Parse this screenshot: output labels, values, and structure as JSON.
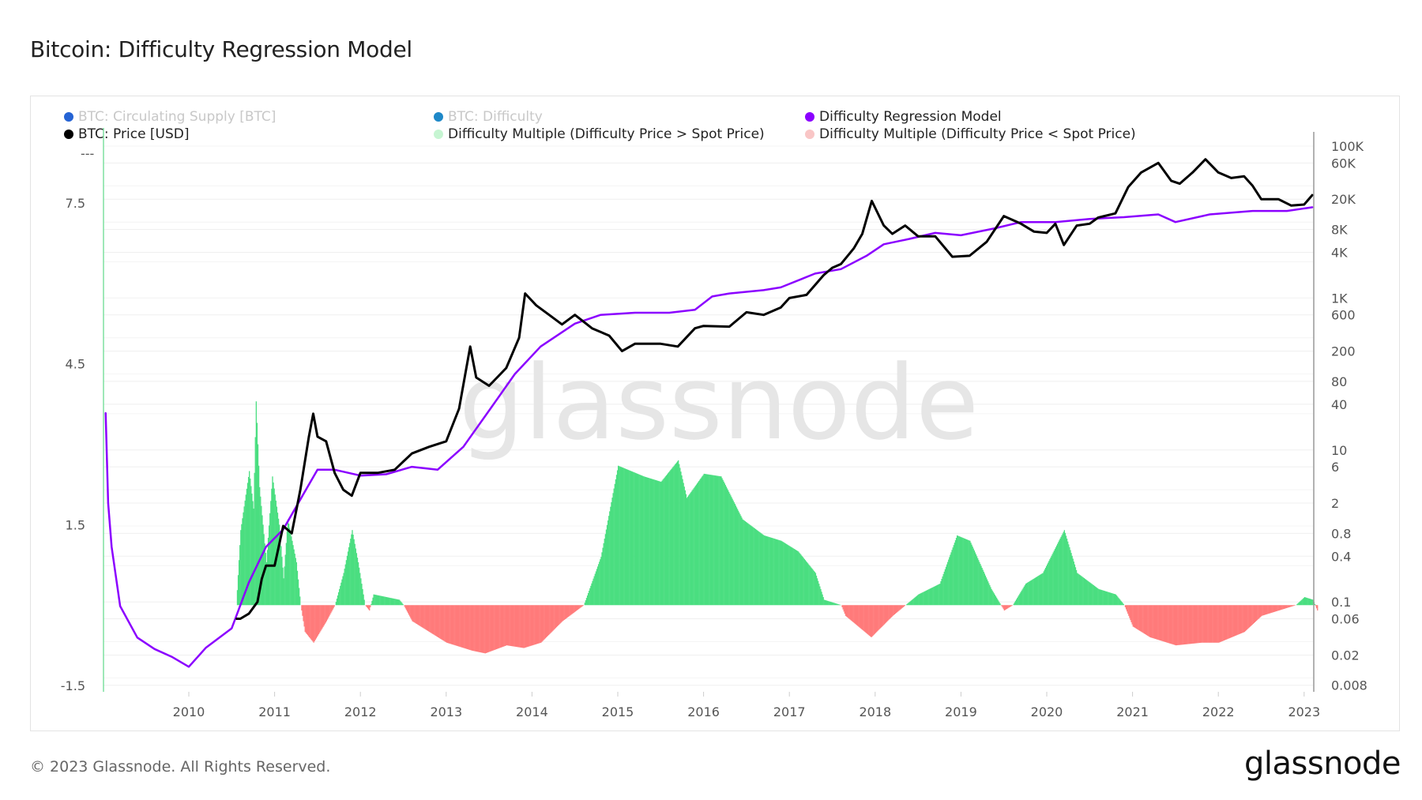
{
  "title": "Bitcoin: Difficulty Regression Model",
  "footer": "© 2023 Glassnode. All Rights Reserved.",
  "logo": "glassnode",
  "watermark": "glassnode",
  "legend": [
    {
      "label": "BTC: Circulating Supply [BTC]",
      "color": "#2563d4",
      "enabled": false
    },
    {
      "label": "BTC: Difficulty",
      "color": "#1e88c8",
      "enabled": false
    },
    {
      "label": "Difficulty Regression Model",
      "color": "#8b00ff",
      "enabled": true
    },
    {
      "label": "BTC: Price [USD]",
      "color": "#000000",
      "enabled": true
    },
    {
      "label": "Difficulty Multiple (Difficulty Price > Spot Price)",
      "color": "#c6f5d2",
      "enabled": true
    },
    {
      "label": "Difficulty Multiple (Difficulty Price < Spot Price)",
      "color": "#f9c6c6",
      "enabled": true
    }
  ],
  "chart_data": {
    "type": "line",
    "title": "Bitcoin: Difficulty Regression Model",
    "x_ticks": [
      "2010",
      "2011",
      "2012",
      "2013",
      "2014",
      "2015",
      "2016",
      "2017",
      "2018",
      "2019",
      "2020",
      "2021",
      "2022",
      "2023"
    ],
    "left_axis": {
      "ticks": [
        "7.5",
        "4.5",
        "1.5",
        "-1.5"
      ],
      "tick_values": [
        7.5,
        4.5,
        1.5,
        -1.5
      ],
      "top_label": "---",
      "range": [
        -1.5,
        7.5
      ]
    },
    "right_axis": {
      "scale": "log",
      "ticks": [
        "100K",
        "60K",
        "20K",
        "8K",
        "4K",
        "1K",
        "600",
        "200",
        "80",
        "40",
        "10",
        "6",
        "2",
        "0.8",
        "0.4",
        "0.1",
        "0.06",
        "0.02",
        "0.008"
      ],
      "tick_values": [
        100000,
        60000,
        20000,
        8000,
        4000,
        1000,
        600,
        200,
        80,
        40,
        10,
        6,
        2,
        0.8,
        0.4,
        0.1,
        0.06,
        0.02,
        0.008
      ],
      "range": [
        0.008,
        100000
      ]
    },
    "x_range": [
      2009.0,
      2023.11
    ],
    "grid": true,
    "legend_placement": "top",
    "series": [
      {
        "name": "BTC: Price [USD]",
        "axis": "right",
        "color": "#000000",
        "points": [
          [
            2010.55,
            0.06
          ],
          [
            2010.6,
            0.06
          ],
          [
            2010.7,
            0.07
          ],
          [
            2010.8,
            0.1
          ],
          [
            2010.85,
            0.2
          ],
          [
            2010.9,
            0.3
          ],
          [
            2011.0,
            0.3
          ],
          [
            2011.1,
            1.0
          ],
          [
            2011.2,
            0.8
          ],
          [
            2011.3,
            3
          ],
          [
            2011.4,
            15
          ],
          [
            2011.45,
            30
          ],
          [
            2011.5,
            15
          ],
          [
            2011.6,
            13
          ],
          [
            2011.7,
            5
          ],
          [
            2011.8,
            3
          ],
          [
            2011.9,
            2.5
          ],
          [
            2012.0,
            5
          ],
          [
            2012.2,
            5
          ],
          [
            2012.4,
            5.5
          ],
          [
            2012.6,
            9
          ],
          [
            2012.8,
            11
          ],
          [
            2013.0,
            13
          ],
          [
            2013.15,
            35
          ],
          [
            2013.28,
            230
          ],
          [
            2013.35,
            90
          ],
          [
            2013.5,
            70
          ],
          [
            2013.7,
            120
          ],
          [
            2013.85,
            300
          ],
          [
            2013.92,
            1150
          ],
          [
            2014.05,
            800
          ],
          [
            2014.2,
            600
          ],
          [
            2014.35,
            450
          ],
          [
            2014.5,
            600
          ],
          [
            2014.7,
            400
          ],
          [
            2014.9,
            320
          ],
          [
            2015.05,
            200
          ],
          [
            2015.2,
            250
          ],
          [
            2015.5,
            250
          ],
          [
            2015.7,
            230
          ],
          [
            2015.9,
            400
          ],
          [
            2016.0,
            430
          ],
          [
            2016.3,
            420
          ],
          [
            2016.5,
            650
          ],
          [
            2016.7,
            600
          ],
          [
            2016.9,
            750
          ],
          [
            2017.0,
            1000
          ],
          [
            2017.2,
            1100
          ],
          [
            2017.4,
            2000
          ],
          [
            2017.5,
            2500
          ],
          [
            2017.6,
            2800
          ],
          [
            2017.75,
            4500
          ],
          [
            2017.85,
            7000
          ],
          [
            2017.96,
            19000
          ],
          [
            2018.1,
            9000
          ],
          [
            2018.2,
            7000
          ],
          [
            2018.35,
            9000
          ],
          [
            2018.5,
            6500
          ],
          [
            2018.7,
            6500
          ],
          [
            2018.9,
            3500
          ],
          [
            2019.1,
            3600
          ],
          [
            2019.3,
            5500
          ],
          [
            2019.5,
            12000
          ],
          [
            2019.7,
            9500
          ],
          [
            2019.85,
            7500
          ],
          [
            2020.0,
            7200
          ],
          [
            2020.1,
            9500
          ],
          [
            2020.2,
            5000
          ],
          [
            2020.35,
            9000
          ],
          [
            2020.5,
            9500
          ],
          [
            2020.6,
            11500
          ],
          [
            2020.8,
            13000
          ],
          [
            2020.95,
            29000
          ],
          [
            2021.1,
            45000
          ],
          [
            2021.3,
            60000
          ],
          [
            2021.45,
            35000
          ],
          [
            2021.55,
            32000
          ],
          [
            2021.7,
            45000
          ],
          [
            2021.85,
            67000
          ],
          [
            2022.0,
            45000
          ],
          [
            2022.15,
            38000
          ],
          [
            2022.3,
            40000
          ],
          [
            2022.4,
            30000
          ],
          [
            2022.5,
            20000
          ],
          [
            2022.7,
            20000
          ],
          [
            2022.85,
            16500
          ],
          [
            2023.0,
            17000
          ],
          [
            2023.1,
            23000
          ]
        ]
      },
      {
        "name": "Difficulty Regression Model",
        "axis": "right",
        "color": "#8b00ff",
        "points": [
          [
            2009.03,
            31
          ],
          [
            2009.06,
            2
          ],
          [
            2009.1,
            0.53
          ],
          [
            2009.2,
            0.088
          ],
          [
            2009.4,
            0.034
          ],
          [
            2009.6,
            0.024
          ],
          [
            2009.8,
            0.019
          ],
          [
            2010.0,
            0.014
          ],
          [
            2010.2,
            0.025
          ],
          [
            2010.5,
            0.045
          ],
          [
            2010.7,
            0.18
          ],
          [
            2010.9,
            0.53
          ],
          [
            2011.1,
            0.9
          ],
          [
            2011.35,
            2.8
          ],
          [
            2011.5,
            5.5
          ],
          [
            2011.7,
            5.5
          ],
          [
            2012.0,
            4.6
          ],
          [
            2012.3,
            4.8
          ],
          [
            2012.6,
            6.0
          ],
          [
            2012.9,
            5.5
          ],
          [
            2013.2,
            11
          ],
          [
            2013.5,
            33
          ],
          [
            2013.8,
            100
          ],
          [
            2014.1,
            230
          ],
          [
            2014.5,
            460
          ],
          [
            2014.8,
            600
          ],
          [
            2015.2,
            640
          ],
          [
            2015.6,
            640
          ],
          [
            2015.9,
            700
          ],
          [
            2016.1,
            1050
          ],
          [
            2016.3,
            1150
          ],
          [
            2016.7,
            1270
          ],
          [
            2016.9,
            1380
          ],
          [
            2017.3,
            2100
          ],
          [
            2017.6,
            2400
          ],
          [
            2017.9,
            3600
          ],
          [
            2018.1,
            5100
          ],
          [
            2018.4,
            6000
          ],
          [
            2018.7,
            7200
          ],
          [
            2019.0,
            6700
          ],
          [
            2019.4,
            8300
          ],
          [
            2019.7,
            10000
          ],
          [
            2020.1,
            10000
          ],
          [
            2020.5,
            11000
          ],
          [
            2020.9,
            11600
          ],
          [
            2021.3,
            12600
          ],
          [
            2021.5,
            10000
          ],
          [
            2021.9,
            12600
          ],
          [
            2022.4,
            14000
          ],
          [
            2022.8,
            14000
          ],
          [
            2023.1,
            15700
          ]
        ]
      },
      {
        "name": "Difficulty Multiple",
        "axis": "left",
        "type": "bar",
        "color_positive": "#4ade80",
        "color_negative": "#ff7a7a",
        "points": [
          [
            2010.55,
            0
          ],
          [
            2010.6,
            1.4
          ],
          [
            2010.7,
            2.5
          ],
          [
            2010.75,
            1.8
          ],
          [
            2010.78,
            3.8
          ],
          [
            2010.82,
            2.2
          ],
          [
            2010.9,
            0.8
          ],
          [
            2010.97,
            2.4
          ],
          [
            2011.05,
            1.5
          ],
          [
            2011.1,
            0.5
          ],
          [
            2011.15,
            1.6
          ],
          [
            2011.25,
            0.8
          ],
          [
            2011.3,
            0
          ],
          [
            2011.35,
            -0.5
          ],
          [
            2011.45,
            -0.7
          ],
          [
            2011.6,
            -0.3
          ],
          [
            2011.7,
            0
          ],
          [
            2011.8,
            0.6
          ],
          [
            2011.9,
            1.4
          ],
          [
            2011.97,
            0.8
          ],
          [
            2012.05,
            0
          ],
          [
            2012.1,
            -0.1
          ],
          [
            2012.15,
            0.2
          ],
          [
            2012.45,
            0.1
          ],
          [
            2012.5,
            0
          ],
          [
            2012.6,
            -0.3
          ],
          [
            2012.8,
            -0.5
          ],
          [
            2013.0,
            -0.7
          ],
          [
            2013.3,
            -0.85
          ],
          [
            2013.45,
            -0.9
          ],
          [
            2013.7,
            -0.75
          ],
          [
            2013.9,
            -0.8
          ],
          [
            2014.1,
            -0.7
          ],
          [
            2014.35,
            -0.3
          ],
          [
            2014.6,
            0
          ],
          [
            2014.8,
            0.9
          ],
          [
            2015.0,
            2.6
          ],
          [
            2015.3,
            2.4
          ],
          [
            2015.5,
            2.3
          ],
          [
            2015.7,
            2.7
          ],
          [
            2015.8,
            2.0
          ],
          [
            2016.0,
            2.45
          ],
          [
            2016.2,
            2.4
          ],
          [
            2016.45,
            1.6
          ],
          [
            2016.7,
            1.3
          ],
          [
            2016.9,
            1.2
          ],
          [
            2017.1,
            1.0
          ],
          [
            2017.3,
            0.6
          ],
          [
            2017.4,
            0.1
          ],
          [
            2017.6,
            0
          ],
          [
            2017.65,
            -0.2
          ],
          [
            2017.95,
            -0.6
          ],
          [
            2018.2,
            -0.2
          ],
          [
            2018.35,
            0
          ],
          [
            2018.5,
            0.2
          ],
          [
            2018.75,
            0.4
          ],
          [
            2018.95,
            1.3
          ],
          [
            2019.1,
            1.2
          ],
          [
            2019.35,
            0.3
          ],
          [
            2019.5,
            -0.1
          ],
          [
            2019.6,
            0
          ],
          [
            2019.75,
            0.4
          ],
          [
            2019.95,
            0.6
          ],
          [
            2020.2,
            1.4
          ],
          [
            2020.35,
            0.6
          ],
          [
            2020.6,
            0.3
          ],
          [
            2020.8,
            0.2
          ],
          [
            2020.9,
            0
          ],
          [
            2021.0,
            -0.4
          ],
          [
            2021.2,
            -0.6
          ],
          [
            2021.5,
            -0.75
          ],
          [
            2021.8,
            -0.7
          ],
          [
            2022.0,
            -0.7
          ],
          [
            2022.3,
            -0.5
          ],
          [
            2022.5,
            -0.2
          ],
          [
            2022.8,
            -0.05
          ],
          [
            2022.9,
            0
          ],
          [
            2023.0,
            0.15
          ],
          [
            2023.1,
            0.1
          ],
          [
            2023.15,
            -0.1
          ]
        ]
      }
    ]
  }
}
